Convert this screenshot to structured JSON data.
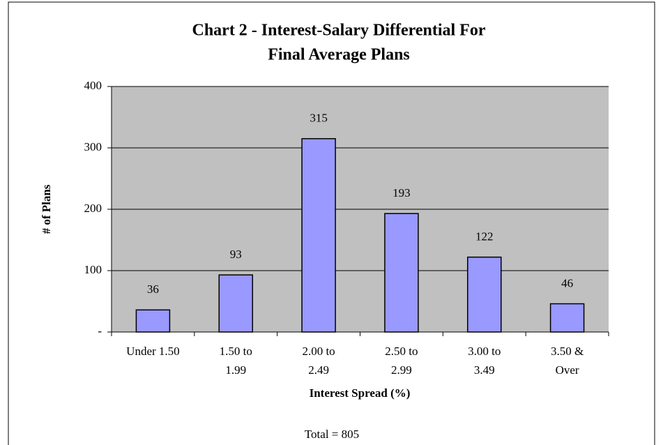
{
  "chart_data": {
    "type": "bar",
    "title": [
      "Chart 2 - Interest-Salary Differential For",
      "Final Average Plans"
    ],
    "x_label": "Interest Spread (%)",
    "y_label": "# of Plans",
    "categories": [
      [
        "Under 1.50"
      ],
      [
        "1.50 to",
        "1.99"
      ],
      [
        "2.00 to",
        "2.49"
      ],
      [
        "2.50 to",
        "2.99"
      ],
      [
        "3.00 to",
        "3.49"
      ],
      [
        "3.50 &",
        "Over"
      ]
    ],
    "values": [
      36,
      93,
      315,
      193,
      122,
      46
    ],
    "color": "#9999ff",
    "ylim": [
      0,
      400
    ],
    "yticks": [
      {
        "value": 0,
        "label": "-"
      },
      100,
      200,
      300,
      400
    ],
    "grid": true,
    "annotation": "Total = 805"
  }
}
